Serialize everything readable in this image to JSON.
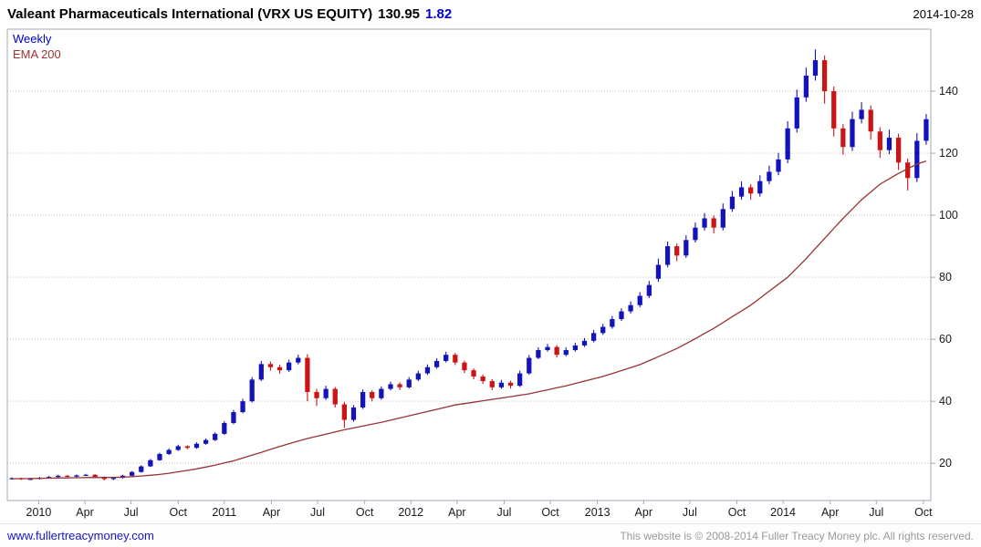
{
  "window": {
    "title": "Valeant Pharmaceuticals International (VRX US EQUITY)",
    "price": "130.95",
    "change": "1.82",
    "date": "2014-10-28"
  },
  "legend": {
    "frequency": "Weekly",
    "overlay": "EMA 200"
  },
  "footer": {
    "link": "www.fullertreacymoney.com",
    "copyright": "This website is © 2008-2014 Fuller Treacy Money plc. All rights reserved."
  },
  "colors": {
    "up": "#1313bb",
    "down": "#cc1414",
    "ema": "#993333",
    "grid": "#c4c4c4",
    "border": "#a3aab6",
    "tick_text": "#1a1a1a",
    "accent_blue": "#0000cc",
    "link_blue": "#1515cc",
    "copy_gray": "#9a9a9a"
  },
  "chart_data": {
    "type": "candlestick",
    "title": "Valeant Pharmaceuticals International (VRX US EQUITY)",
    "frequency": "Weekly",
    "overlay": "EMA 200",
    "last_price": 130.95,
    "change": 1.82,
    "as_of_date": "2014-10-28",
    "yaxis_side": "right",
    "grid": "horizontal-dotted",
    "legend_position": "top-left",
    "ylim": [
      8,
      160
    ],
    "yticks": [
      20,
      40,
      60,
      80,
      100,
      120,
      140
    ],
    "xticks": [
      {
        "label": "2010",
        "pos": 0.034
      },
      {
        "label": "Apr",
        "pos": 0.084
      },
      {
        "label": "Jul",
        "pos": 0.134
      },
      {
        "label": "Oct",
        "pos": 0.185
      },
      {
        "label": "2011",
        "pos": 0.235
      },
      {
        "label": "Apr",
        "pos": 0.286
      },
      {
        "label": "Jul",
        "pos": 0.336
      },
      {
        "label": "Oct",
        "pos": 0.387
      },
      {
        "label": "2012",
        "pos": 0.437
      },
      {
        "label": "Apr",
        "pos": 0.487
      },
      {
        "label": "Jul",
        "pos": 0.538
      },
      {
        "label": "Oct",
        "pos": 0.588
      },
      {
        "label": "2013",
        "pos": 0.639
      },
      {
        "label": "Apr",
        "pos": 0.689
      },
      {
        "label": "Jul",
        "pos": 0.739
      },
      {
        "label": "Oct",
        "pos": 0.79
      },
      {
        "label": "2014",
        "pos": 0.84
      },
      {
        "label": "Apr",
        "pos": 0.891
      },
      {
        "label": "Jul",
        "pos": 0.941
      },
      {
        "label": "Oct",
        "pos": 0.992
      }
    ],
    "candles": [
      [
        15.0,
        15.5,
        14.7,
        15.2
      ],
      [
        15.2,
        15.4,
        14.6,
        14.9
      ],
      [
        14.9,
        15.3,
        14.6,
        15.0
      ],
      [
        15.0,
        15.6,
        14.8,
        15.3
      ],
      [
        15.3,
        15.9,
        15.1,
        15.6
      ],
      [
        15.6,
        16.3,
        15.4,
        16.0
      ],
      [
        16.0,
        16.2,
        15.4,
        15.7
      ],
      [
        15.7,
        16.4,
        15.5,
        16.1
      ],
      [
        16.1,
        16.6,
        15.9,
        16.3
      ],
      [
        16.3,
        16.5,
        15.3,
        15.6
      ],
      [
        15.6,
        15.8,
        14.5,
        14.9
      ],
      [
        14.9,
        15.6,
        14.6,
        15.3
      ],
      [
        15.3,
        16.3,
        15.1,
        16.0
      ],
      [
        16.0,
        17.5,
        15.8,
        17.2
      ],
      [
        17.2,
        19.4,
        17.0,
        19.0
      ],
      [
        19.0,
        21.4,
        18.8,
        21.0
      ],
      [
        21.0,
        23.4,
        20.8,
        23.0
      ],
      [
        23.0,
        24.8,
        22.7,
        24.3
      ],
      [
        24.3,
        26.0,
        24.0,
        25.5
      ],
      [
        25.5,
        25.8,
        24.5,
        25.0
      ],
      [
        25.0,
        26.8,
        24.7,
        26.3
      ],
      [
        26.3,
        28.0,
        26.0,
        27.5
      ],
      [
        27.5,
        30.0,
        27.2,
        29.5
      ],
      [
        29.5,
        33.6,
        29.2,
        33.0
      ],
      [
        33.0,
        37.2,
        32.6,
        36.5
      ],
      [
        36.5,
        40.8,
        36.1,
        40.0
      ],
      [
        40.0,
        47.8,
        39.6,
        47.0
      ],
      [
        47.0,
        53.0,
        46.5,
        52.0
      ],
      [
        52.0,
        52.8,
        49.9,
        51.0
      ],
      [
        51.0,
        51.8,
        48.9,
        50.0
      ],
      [
        50.0,
        53.4,
        49.5,
        52.5
      ],
      [
        52.5,
        55.0,
        51.9,
        54.0
      ],
      [
        54.0,
        55.2,
        40.0,
        43.0
      ],
      [
        43.0,
        44.0,
        38.5,
        41.0
      ],
      [
        41.0,
        45.0,
        40.4,
        44.0
      ],
      [
        44.0,
        44.6,
        38.0,
        39.0
      ],
      [
        39.0,
        39.8,
        31.5,
        34.0
      ],
      [
        34.0,
        38.8,
        33.4,
        38.0
      ],
      [
        38.0,
        43.8,
        37.5,
        43.0
      ],
      [
        43.0,
        43.6,
        40.0,
        41.0
      ],
      [
        41.0,
        44.8,
        40.5,
        44.0
      ],
      [
        44.0,
        46.3,
        43.5,
        45.5
      ],
      [
        45.5,
        46.1,
        43.6,
        44.5
      ],
      [
        44.5,
        47.8,
        44.1,
        47.0
      ],
      [
        47.0,
        49.8,
        46.5,
        49.0
      ],
      [
        49.0,
        51.9,
        48.5,
        51.0
      ],
      [
        51.0,
        53.9,
        50.5,
        53.0
      ],
      [
        53.0,
        56.0,
        52.5,
        55.0
      ],
      [
        55.0,
        55.6,
        51.7,
        52.5
      ],
      [
        52.5,
        53.1,
        49.1,
        50.0
      ],
      [
        50.0,
        50.6,
        47.1,
        48.0
      ],
      [
        48.0,
        48.6,
        45.6,
        46.5
      ],
      [
        46.5,
        47.1,
        43.6,
        44.5
      ],
      [
        44.5,
        46.9,
        44.0,
        46.0
      ],
      [
        46.0,
        46.6,
        44.1,
        45.0
      ],
      [
        45.0,
        49.9,
        44.6,
        49.0
      ],
      [
        49.0,
        54.9,
        48.6,
        54.0
      ],
      [
        54.0,
        57.4,
        53.6,
        56.5
      ],
      [
        56.5,
        58.5,
        56.0,
        57.5
      ],
      [
        57.5,
        58.1,
        54.1,
        55.0
      ],
      [
        55.0,
        57.4,
        54.5,
        56.5
      ],
      [
        56.5,
        58.9,
        56.0,
        58.0
      ],
      [
        58.0,
        60.4,
        57.5,
        59.5
      ],
      [
        59.5,
        63.0,
        59.0,
        62.0
      ],
      [
        62.0,
        65.0,
        61.4,
        64.0
      ],
      [
        64.0,
        67.5,
        63.4,
        66.5
      ],
      [
        66.5,
        70.0,
        65.9,
        69.0
      ],
      [
        69.0,
        72.2,
        68.3,
        71.0
      ],
      [
        71.0,
        75.2,
        70.3,
        74.0
      ],
      [
        74.0,
        78.8,
        73.3,
        77.5
      ],
      [
        79.5,
        86.0,
        78.5,
        84.0
      ],
      [
        84.0,
        91.5,
        83.2,
        90.0
      ],
      [
        90.0,
        90.9,
        85.2,
        87.0
      ],
      [
        87.0,
        93.5,
        86.2,
        92.0
      ],
      [
        92.0,
        97.6,
        91.2,
        96.0
      ],
      [
        96.0,
        100.7,
        95.1,
        99.0
      ],
      [
        99.0,
        99.9,
        94.1,
        96.0
      ],
      [
        96.0,
        103.8,
        95.1,
        102.0
      ],
      [
        102.0,
        107.8,
        101.1,
        106.0
      ],
      [
        106.0,
        110.9,
        105.0,
        109.0
      ],
      [
        109.0,
        110.0,
        105.0,
        107.0
      ],
      [
        107.0,
        112.9,
        106.0,
        111.0
      ],
      [
        111.0,
        116.0,
        110.0,
        114.0
      ],
      [
        114.0,
        120.1,
        112.9,
        118.0
      ],
      [
        118.0,
        130.3,
        116.8,
        128.0
      ],
      [
        128.0,
        140.5,
        126.7,
        138.0
      ],
      [
        138.0,
        147.6,
        136.6,
        145.0
      ],
      [
        145.0,
        153.5,
        143.4,
        150.0
      ],
      [
        150.0,
        151.5,
        136.0,
        140.0
      ],
      [
        140.0,
        141.5,
        125.4,
        128.0
      ],
      [
        128.0,
        129.4,
        119.5,
        122.0
      ],
      [
        122.0,
        133.4,
        120.7,
        131.0
      ],
      [
        131.0,
        136.4,
        129.6,
        134.0
      ],
      [
        134.0,
        135.4,
        124.4,
        127.0
      ],
      [
        127.0,
        128.4,
        118.5,
        121.0
      ],
      [
        121.0,
        127.6,
        119.7,
        125.0
      ],
      [
        125.0,
        126.3,
        114.6,
        117.0
      ],
      [
        117.0,
        118.3,
        108.0,
        112.0
      ],
      [
        112.0,
        126.5,
        110.7,
        124.0
      ],
      [
        124.0,
        132.6,
        122.7,
        130.95
      ]
    ],
    "ema": [
      15.0,
      15.05,
      15.1,
      15.15,
      15.2,
      15.25,
      15.3,
      15.35,
      15.4,
      15.42,
      15.45,
      15.48,
      15.5,
      15.7,
      15.9,
      16.15,
      16.4,
      16.8,
      17.25,
      17.7,
      18.2,
      18.8,
      19.4,
      20.1,
      20.8,
      21.7,
      22.6,
      23.5,
      24.5,
      25.4,
      26.3,
      27.2,
      28.0,
      28.7,
      29.4,
      30.1,
      30.8,
      31.4,
      32.0,
      32.6,
      33.2,
      33.9,
      34.6,
      35.3,
      36.0,
      36.7,
      37.4,
      38.1,
      38.8,
      39.25,
      39.7,
      40.15,
      40.6,
      41.05,
      41.5,
      41.95,
      42.4,
      43.05,
      43.7,
      44.35,
      45.0,
      45.75,
      46.5,
      47.25,
      48.0,
      48.95,
      49.9,
      50.85,
      51.8,
      53.1,
      54.4,
      55.7,
      57.0,
      58.6,
      60.2,
      61.9,
      63.5,
      65.4,
      67.3,
      69.1,
      71.0,
      73.25,
      75.5,
      77.75,
      80.0,
      83.0,
      86.0,
      89.25,
      92.5,
      95.75,
      99.0,
      102.0,
      105.0,
      107.5,
      110.0,
      111.75,
      113.5,
      115.0,
      116.5,
      117.5
    ]
  }
}
